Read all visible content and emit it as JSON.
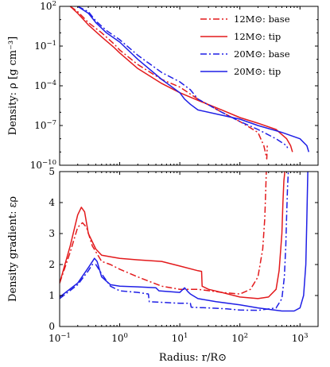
{
  "colors": {
    "red": "#e31a1c",
    "blue": "#1f1fe6",
    "axis": "#000000"
  },
  "legend": {
    "position": "top-right",
    "entries": [
      {
        "key": "s12b",
        "mass": "12",
        "label": "12M⊙: base",
        "style": "dashdot",
        "color": "#e31a1c"
      },
      {
        "key": "s12t",
        "mass": "12",
        "label": "12M⊙: tip",
        "style": "solid",
        "color": "#e31a1c"
      },
      {
        "key": "s20b",
        "mass": "20",
        "label": "20M⊙: base",
        "style": "dashdot",
        "color": "#1f1fe6"
      },
      {
        "key": "s20t",
        "mass": "20",
        "label": "20M⊙: tip",
        "style": "solid",
        "color": "#1f1fe6"
      }
    ]
  },
  "chart_data": [
    {
      "type": "line",
      "panel": "top",
      "ylabel": "Density: ρ [g cm⁻³]",
      "xscale": "log",
      "yscale": "log",
      "xlim": [
        0.1,
        2000
      ],
      "ylim": [
        1e-10,
        100
      ],
      "yticks": [
        {
          "value": 100.0,
          "mant": "10",
          "exp": "2"
        },
        {
          "value": 0.1,
          "mant": "10",
          "exp": "−1"
        },
        {
          "value": 0.0001,
          "mant": "10",
          "exp": "−4"
        },
        {
          "value": 1e-07,
          "mant": "10",
          "exp": "−7"
        },
        {
          "value": 1e-10,
          "mant": "10",
          "exp": "−10"
        }
      ],
      "series": [
        {
          "key": "s12b",
          "x": [
            0.15,
            0.2,
            0.3,
            0.5,
            0.8,
            1,
            2,
            5,
            10,
            20,
            50,
            100,
            200,
            250,
            280,
            285
          ],
          "y": [
            100,
            40,
            6,
            1,
            0.15,
            0.05,
            0.004,
            0.0003,
            8e-05,
            1e-05,
            1e-06,
            2e-07,
            3e-08,
            3e-09,
            3e-10,
            3e-09
          ]
        },
        {
          "key": "s12t",
          "x": [
            0.15,
            0.2,
            0.3,
            0.5,
            0.8,
            1,
            2,
            5,
            10,
            20,
            50,
            100,
            200,
            400,
            600,
            700,
            750
          ],
          "y": [
            100,
            30,
            4,
            0.5,
            0.08,
            0.03,
            0.002,
            0.00015,
            3e-05,
            8e-06,
            1.5e-06,
            4e-07,
            1.5e-07,
            5e-08,
            1e-08,
            3e-09,
            1e-09
          ]
        },
        {
          "key": "s20b",
          "x": [
            0.2,
            0.3,
            0.4,
            0.6,
            1,
            2,
            5,
            10,
            15,
            20,
            50,
            100,
            200,
            400,
            600,
            620
          ],
          "y": [
            100,
            40,
            8,
            1.5,
            0.3,
            0.02,
            0.001,
            0.0002,
            5e-05,
            1e-05,
            1e-06,
            2e-07,
            5e-08,
            1e-08,
            3e-09,
            2e-09
          ]
        },
        {
          "key": "s20t",
          "x": [
            0.2,
            0.3,
            0.4,
            0.6,
            1,
            2,
            5,
            10,
            12,
            15,
            20,
            50,
            100,
            200,
            500,
            1000,
            1300,
            1400
          ],
          "y": [
            100,
            30,
            6,
            1,
            0.2,
            0.01,
            0.0003,
            3e-05,
            1e-05,
            4e-06,
            1.5e-06,
            6e-07,
            3e-07,
            1e-07,
            3e-08,
            1e-08,
            3e-09,
            1e-09
          ]
        }
      ]
    },
    {
      "type": "line",
      "panel": "bottom",
      "xlabel": "Radius: r/R⊙",
      "ylabel": "Density gradient: ερ",
      "xscale": "log",
      "yscale": "linear",
      "xlim": [
        0.1,
        2000
      ],
      "ylim": [
        0,
        5
      ],
      "yticks": [
        0,
        1,
        2,
        3,
        4,
        5
      ],
      "xticks": [
        {
          "value": 0.1,
          "mant": "10",
          "exp": "−1"
        },
        {
          "value": 1,
          "mant": "10",
          "exp": "0"
        },
        {
          "value": 10,
          "mant": "10",
          "exp": "1"
        },
        {
          "value": 100,
          "mant": "10",
          "exp": "2"
        },
        {
          "value": 1000,
          "mant": "10",
          "exp": "3"
        }
      ],
      "series": [
        {
          "key": "s12b",
          "x": [
            0.1,
            0.15,
            0.2,
            0.24,
            0.28,
            0.35,
            0.5,
            0.7,
            1,
            2,
            5,
            10,
            20,
            50,
            100,
            150,
            200,
            240,
            260,
            270,
            275,
            280
          ],
          "y": [
            1.4,
            2.4,
            3.2,
            3.35,
            3.2,
            2.6,
            2.1,
            2.0,
            1.85,
            1.6,
            1.3,
            1.2,
            1.2,
            1.1,
            1.05,
            1.2,
            1.6,
            2.5,
            3.5,
            4.5,
            5.0,
            5.0
          ]
        },
        {
          "key": "s12t",
          "x": [
            0.1,
            0.15,
            0.2,
            0.23,
            0.26,
            0.3,
            0.4,
            0.5,
            0.7,
            1,
            2,
            5,
            10,
            20,
            23,
            23.5,
            30,
            50,
            100,
            200,
            300,
            400,
            450,
            500,
            520,
            540,
            560
          ],
          "y": [
            1.4,
            2.6,
            3.6,
            3.85,
            3.7,
            3.0,
            2.5,
            2.3,
            2.25,
            2.2,
            2.15,
            2.1,
            1.95,
            1.8,
            1.78,
            1.3,
            1.2,
            1.1,
            0.95,
            0.9,
            0.95,
            1.2,
            1.8,
            3.0,
            4.0,
            4.7,
            5.0
          ]
        },
        {
          "key": "s20b",
          "x": [
            0.1,
            0.2,
            0.3,
            0.35,
            0.4,
            0.5,
            0.7,
            1,
            2,
            3,
            3.1,
            5,
            10,
            15,
            15.5,
            30,
            60,
            100,
            200,
            400,
            500,
            550,
            580,
            600,
            620,
            640
          ],
          "y": [
            0.9,
            1.35,
            1.8,
            2.0,
            2.0,
            1.7,
            1.3,
            1.15,
            1.1,
            1.05,
            0.8,
            0.78,
            0.75,
            0.75,
            0.62,
            0.6,
            0.57,
            0.53,
            0.52,
            0.6,
            0.9,
            1.6,
            2.6,
            3.6,
            4.5,
            5.0
          ]
        },
        {
          "key": "s20t",
          "x": [
            0.1,
            0.2,
            0.3,
            0.38,
            0.42,
            0.5,
            0.7,
            1,
            2,
            4,
            4.5,
            10,
            12,
            14,
            15,
            20,
            40,
            100,
            200,
            500,
            800,
            1000,
            1150,
            1250,
            1300,
            1350
          ],
          "y": [
            0.95,
            1.4,
            1.9,
            2.2,
            2.1,
            1.6,
            1.35,
            1.3,
            1.28,
            1.25,
            1.15,
            1.1,
            1.25,
            1.1,
            1.05,
            0.9,
            0.8,
            0.7,
            0.6,
            0.5,
            0.5,
            0.6,
            1.0,
            2.0,
            3.5,
            5.0
          ]
        }
      ]
    }
  ]
}
